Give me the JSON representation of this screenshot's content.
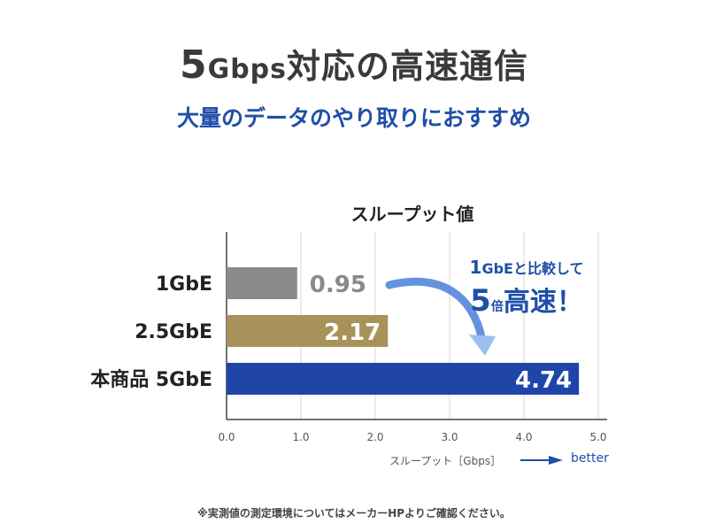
{
  "header": {
    "title_num": "5",
    "title_unit": "Gbps",
    "title_rest": "対応の高速通信",
    "subtitle": "大量のデータのやり取りにおすすめ"
  },
  "callout": {
    "line1_num": "1",
    "line1_text": "GbEと比較して",
    "line2_num": "5",
    "line2_small": "倍",
    "line2_text": "高速！"
  },
  "axis_title": "スループット［Gbps］",
  "better_label": "better",
  "footnote": "※実測値の測定環境についてはメーカーHPよりご確認ください。",
  "colors": {
    "bar_1gbe": "#8a8a8a",
    "bar_25gbe": "#a8925a",
    "bar_5gbe": "#1f45a8",
    "accent": "#1f4fa8"
  },
  "chart_data": {
    "type": "bar",
    "orientation": "horizontal",
    "title": "スループット値",
    "xlabel": "スループット［Gbps］",
    "ylabel": "",
    "categories": [
      "1GbE",
      "2.5GbE",
      "本商品 5GbE"
    ],
    "values": [
      0.95,
      2.17,
      4.74
    ],
    "value_labels": [
      "0.95",
      "2.17",
      "4.74"
    ],
    "xlim": [
      0,
      5
    ],
    "ticks": [
      "0.0",
      "1.0",
      "2.0",
      "3.0",
      "4.0",
      "5.0"
    ],
    "grid": true
  }
}
